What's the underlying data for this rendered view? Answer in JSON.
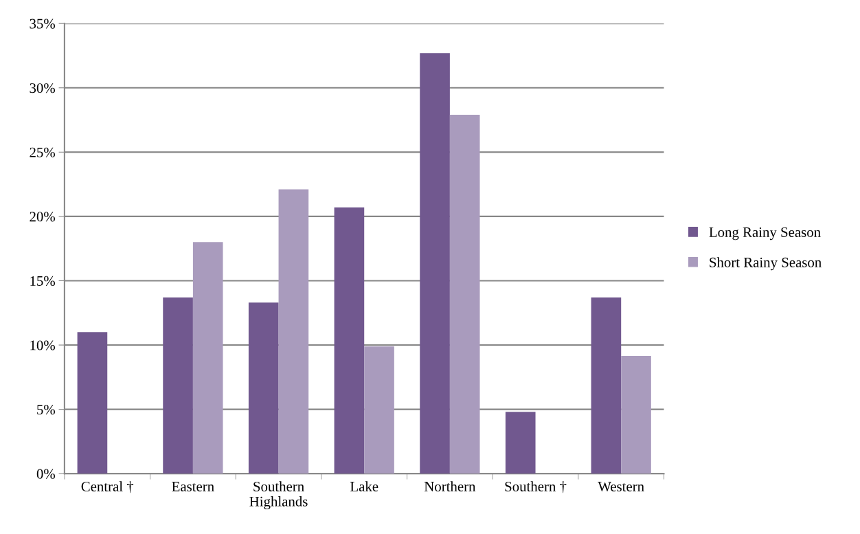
{
  "chart_data": {
    "type": "bar",
    "categories": [
      "Central †",
      "Eastern",
      "Southern\nHighlands",
      "Lake",
      "Northern",
      "Southern †",
      "Western"
    ],
    "series": [
      {
        "name": "Long Rainy Season",
        "color": "#71588f",
        "values": [
          11.0,
          13.7,
          13.3,
          20.7,
          32.7,
          4.8,
          13.7
        ]
      },
      {
        "name": "Short Rainy Season",
        "color": "#a99bbd",
        "values": [
          null,
          18.0,
          22.1,
          9.9,
          27.9,
          null,
          9.15
        ]
      }
    ],
    "ylim": [
      0,
      35
    ],
    "yticks": [
      {
        "value": 0,
        "label": "0%"
      },
      {
        "value": 5,
        "label": "5%"
      },
      {
        "value": 10,
        "label": "10%"
      },
      {
        "value": 15,
        "label": "15%"
      },
      {
        "value": 20,
        "label": "20%"
      },
      {
        "value": 25,
        "label": "25%"
      },
      {
        "value": 30,
        "label": "30%"
      },
      {
        "value": 35,
        "label": "35%"
      }
    ],
    "grid": "y",
    "legend": "right"
  }
}
